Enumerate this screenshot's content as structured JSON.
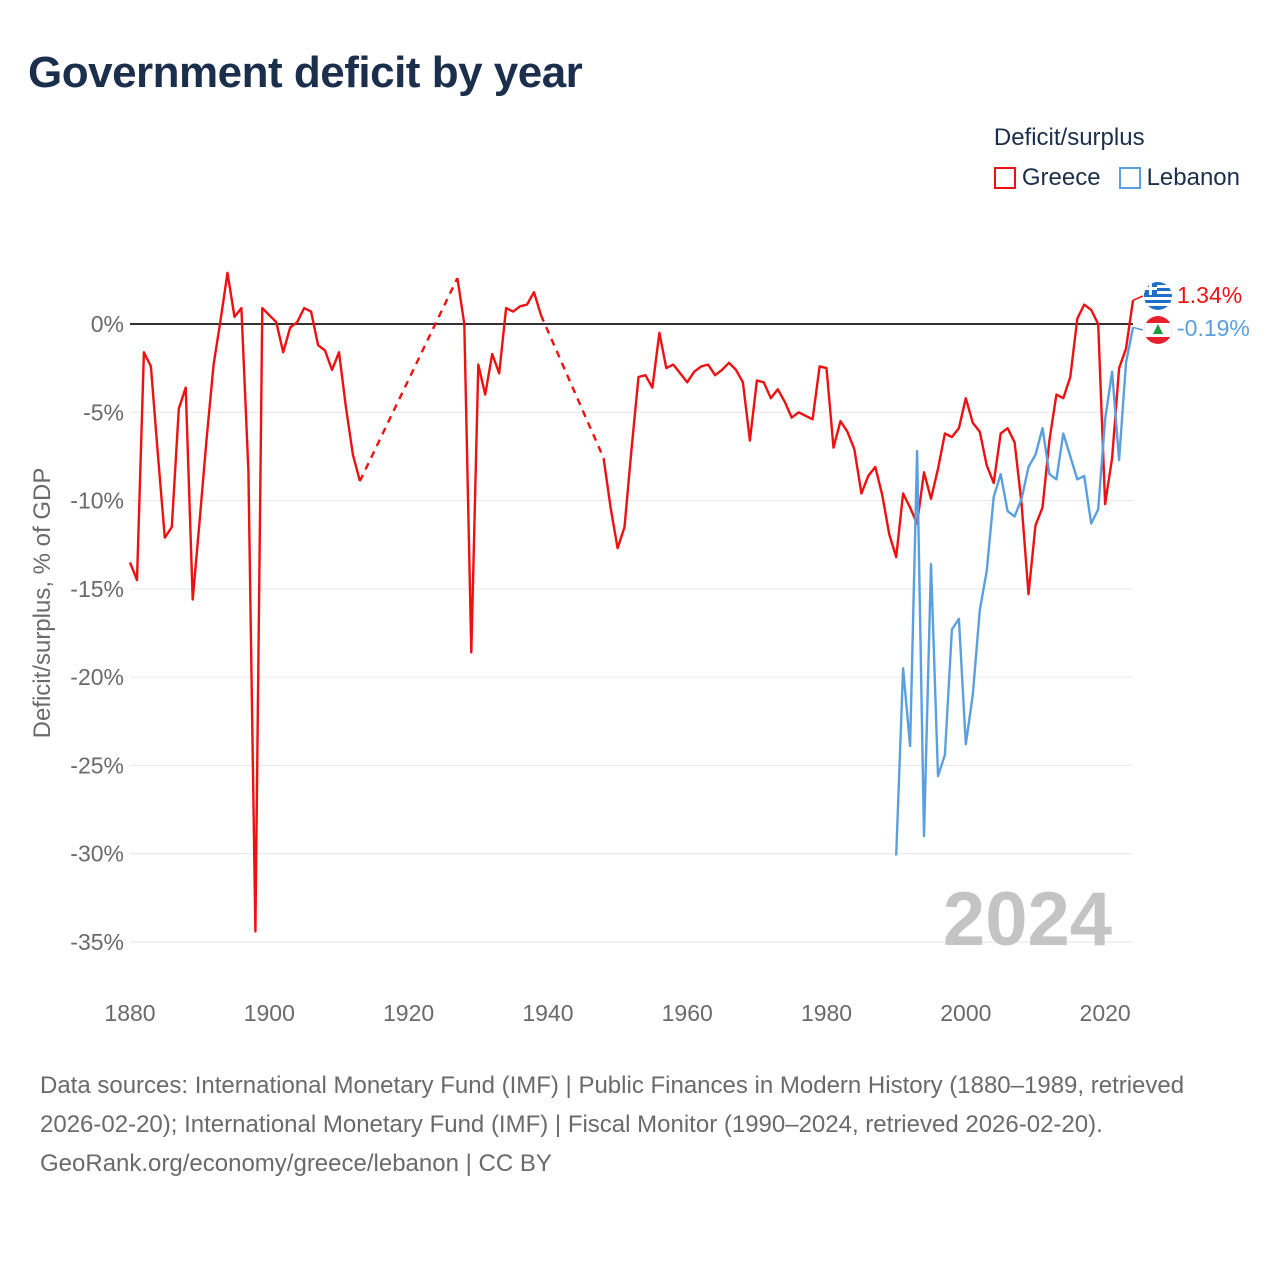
{
  "title": "Government deficit by year",
  "legend": {
    "title": "Deficit/surplus",
    "items": [
      {
        "label": "Greece",
        "color": "#ee1111"
      },
      {
        "label": "Lebanon",
        "color": "#5aa0e0"
      }
    ]
  },
  "footer": {
    "sources": "Data sources: International Monetary Fund (IMF) | Public Finances in Modern History (1880–1989, retrieved 2026-02-20); International Monetary Fund (IMF) | Fiscal Monitor (1990–2024, retrieved 2026-02-20).",
    "credit": "GeoRank.org/economy/greece/lebanon | CC BY"
  },
  "chart_data": {
    "type": "line",
    "title": "Government deficit by year",
    "xlabel": "",
    "ylabel": "Deficit/surplus, % of GDP",
    "xlim": [
      1880,
      2024
    ],
    "ylim": [
      -35,
      3
    ],
    "x_ticks": [
      1880,
      1900,
      1920,
      1940,
      1960,
      1980,
      2000,
      2020
    ],
    "x_tick_labels": [
      "1880",
      "1900",
      "1920",
      "1940",
      "1960",
      "1980",
      "2000",
      "2020"
    ],
    "y_ticks": [
      0,
      -5,
      -10,
      -15,
      -20,
      -25,
      -30,
      -35
    ],
    "y_tick_labels": [
      "0%",
      "-5%",
      "-10%",
      "-15%",
      "-20%",
      "-25%",
      "-30%",
      "-35%"
    ],
    "grid": true,
    "zero_line": true,
    "year_watermark": "2024",
    "series": [
      {
        "name": "Greece",
        "color": "#ee1111",
        "end_label": "1.34%",
        "gap_style": "dashed",
        "points": [
          [
            1880,
            -13.5
          ],
          [
            1881,
            -14.5
          ],
          [
            1882,
            -1.6
          ],
          [
            1883,
            -2.4
          ],
          [
            1884,
            -7.4
          ],
          [
            1885,
            -12.1
          ],
          [
            1886,
            -11.5
          ],
          [
            1887,
            -4.8
          ],
          [
            1888,
            -3.6
          ],
          [
            1889,
            -15.6
          ],
          [
            1890,
            -11.1
          ],
          [
            1891,
            -6.5
          ],
          [
            1892,
            -2.3
          ],
          [
            1893,
            0.2
          ],
          [
            1894,
            2.9
          ],
          [
            1895,
            0.4
          ],
          [
            1896,
            0.9
          ],
          [
            1897,
            -8.3
          ],
          [
            1898,
            -34.4
          ],
          [
            1899,
            0.9
          ],
          [
            1900,
            0.5
          ],
          [
            1901,
            0.1
          ],
          [
            1902,
            -1.6
          ],
          [
            1903,
            -0.2
          ],
          [
            1904,
            0.1
          ],
          [
            1905,
            0.9
          ],
          [
            1906,
            0.7
          ],
          [
            1907,
            -1.2
          ],
          [
            1908,
            -1.5
          ],
          [
            1909,
            -2.6
          ],
          [
            1910,
            -1.6
          ],
          [
            1911,
            -4.7
          ],
          [
            1912,
            -7.4
          ],
          [
            1913,
            -8.9
          ],
          [
            1927,
            2.6
          ],
          [
            1928,
            0.0
          ],
          [
            1929,
            -18.6
          ],
          [
            1930,
            -2.3
          ],
          [
            1931,
            -4.0
          ],
          [
            1932,
            -1.7
          ],
          [
            1933,
            -2.8
          ],
          [
            1934,
            0.9
          ],
          [
            1935,
            0.7
          ],
          [
            1936,
            1.0
          ],
          [
            1937,
            1.1
          ],
          [
            1938,
            1.8
          ],
          [
            1939,
            0.5
          ],
          [
            1948,
            -7.6
          ],
          [
            1949,
            -10.4
          ],
          [
            1950,
            -12.7
          ],
          [
            1951,
            -11.5
          ],
          [
            1952,
            -7.1
          ],
          [
            1953,
            -3.0
          ],
          [
            1954,
            -2.9
          ],
          [
            1955,
            -3.6
          ],
          [
            1956,
            -0.5
          ],
          [
            1957,
            -2.5
          ],
          [
            1958,
            -2.3
          ],
          [
            1959,
            -2.8
          ],
          [
            1960,
            -3.3
          ],
          [
            1961,
            -2.7
          ],
          [
            1962,
            -2.4
          ],
          [
            1963,
            -2.3
          ],
          [
            1964,
            -2.9
          ],
          [
            1965,
            -2.6
          ],
          [
            1966,
            -2.2
          ],
          [
            1967,
            -2.6
          ],
          [
            1968,
            -3.3
          ],
          [
            1969,
            -6.6
          ],
          [
            1970,
            -3.2
          ],
          [
            1971,
            -3.3
          ],
          [
            1972,
            -4.2
          ],
          [
            1973,
            -3.7
          ],
          [
            1974,
            -4.4
          ],
          [
            1975,
            -5.3
          ],
          [
            1976,
            -5.0
          ],
          [
            1977,
            -5.2
          ],
          [
            1978,
            -5.4
          ],
          [
            1979,
            -2.4
          ],
          [
            1980,
            -2.5
          ],
          [
            1981,
            -7.0
          ],
          [
            1982,
            -5.5
          ],
          [
            1983,
            -6.1
          ],
          [
            1984,
            -7.1
          ],
          [
            1985,
            -9.6
          ],
          [
            1986,
            -8.6
          ],
          [
            1987,
            -8.1
          ],
          [
            1988,
            -9.7
          ],
          [
            1989,
            -11.9
          ],
          [
            1990,
            -13.2
          ],
          [
            1991,
            -9.6
          ],
          [
            1992,
            -10.4
          ],
          [
            1993,
            -11.3
          ],
          [
            1994,
            -8.4
          ],
          [
            1995,
            -9.9
          ],
          [
            1996,
            -8.2
          ],
          [
            1997,
            -6.2
          ],
          [
            1998,
            -6.4
          ],
          [
            1999,
            -5.9
          ],
          [
            2000,
            -4.2
          ],
          [
            2001,
            -5.6
          ],
          [
            2002,
            -6.1
          ],
          [
            2003,
            -8.0
          ],
          [
            2004,
            -9.0
          ],
          [
            2005,
            -6.2
          ],
          [
            2006,
            -5.9
          ],
          [
            2007,
            -6.7
          ],
          [
            2008,
            -10.2
          ],
          [
            2009,
            -15.3
          ],
          [
            2010,
            -11.4
          ],
          [
            2011,
            -10.4
          ],
          [
            2012,
            -6.6
          ],
          [
            2013,
            -4.0
          ],
          [
            2014,
            -4.2
          ],
          [
            2015,
            -3.0
          ],
          [
            2016,
            0.3
          ],
          [
            2017,
            1.1
          ],
          [
            2018,
            0.8
          ],
          [
            2019,
            0.0
          ],
          [
            2020,
            -10.2
          ],
          [
            2021,
            -7.6
          ],
          [
            2022,
            -2.5
          ],
          [
            2023,
            -1.4
          ],
          [
            2024,
            1.34
          ]
        ]
      },
      {
        "name": "Lebanon",
        "color": "#5aa0e0",
        "end_label": "-0.19%",
        "points": [
          [
            1990,
            -30.1
          ],
          [
            1991,
            -19.5
          ],
          [
            1992,
            -23.9
          ],
          [
            1993,
            -7.2
          ],
          [
            1994,
            -29.0
          ],
          [
            1995,
            -13.6
          ],
          [
            1996,
            -25.6
          ],
          [
            1997,
            -24.4
          ],
          [
            1998,
            -17.3
          ],
          [
            1999,
            -16.7
          ],
          [
            2000,
            -23.8
          ],
          [
            2001,
            -21.0
          ],
          [
            2002,
            -16.2
          ],
          [
            2003,
            -14.0
          ],
          [
            2004,
            -9.8
          ],
          [
            2005,
            -8.5
          ],
          [
            2006,
            -10.6
          ],
          [
            2007,
            -10.9
          ],
          [
            2008,
            -9.9
          ],
          [
            2009,
            -8.1
          ],
          [
            2010,
            -7.4
          ],
          [
            2011,
            -5.9
          ],
          [
            2012,
            -8.5
          ],
          [
            2013,
            -8.8
          ],
          [
            2014,
            -6.2
          ],
          [
            2015,
            -7.5
          ],
          [
            2016,
            -8.8
          ],
          [
            2017,
            -8.6
          ],
          [
            2018,
            -11.3
          ],
          [
            2019,
            -10.5
          ],
          [
            2020,
            -5.4
          ],
          [
            2021,
            -2.7
          ],
          [
            2022,
            -7.7
          ],
          [
            2023,
            -2.2
          ],
          [
            2024,
            -0.19
          ]
        ]
      }
    ]
  }
}
